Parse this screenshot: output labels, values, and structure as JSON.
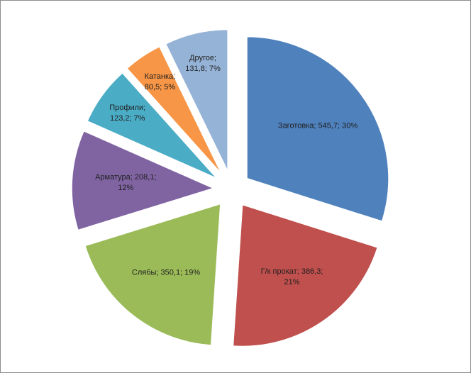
{
  "chart_data": {
    "type": "pie",
    "values": [
      545.7,
      386.3,
      350.1,
      208.1,
      123.2,
      80.5,
      131.8
    ],
    "value_labels": [
      "Заготовка; 545,7; 30%",
      "Г/к прокат; 386,3; 21%",
      "Слябы; 350,1; 19%",
      "Арматура; 208,1; 12%",
      "Профили; 123,2; 7%",
      "Катанка; 80,5; 5%",
      "Другое; 131,8; 7%"
    ],
    "colors": [
      "#4f81bd",
      "#c0504d",
      "#9bbb59",
      "#8064a2",
      "#4bacc6",
      "#f79646",
      "#95b3d7"
    ]
  }
}
